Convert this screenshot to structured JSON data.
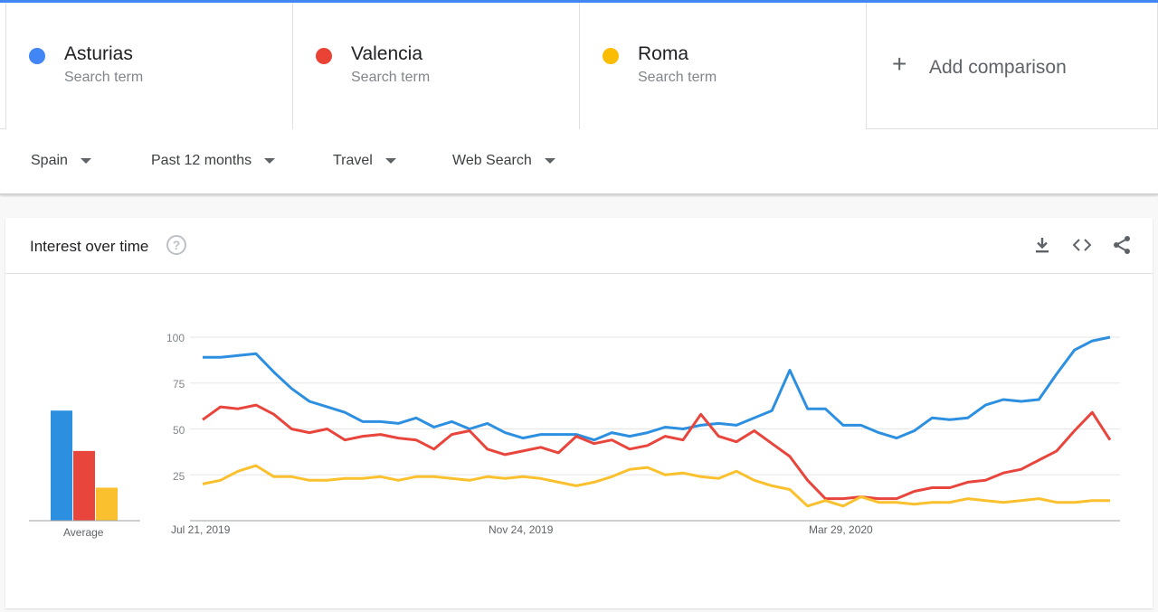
{
  "terms": [
    {
      "name": "Asturias",
      "sub": "Search term",
      "color": "#4285f4"
    },
    {
      "name": "Valencia",
      "sub": "Search term",
      "color": "#ea4335"
    },
    {
      "name": "Roma",
      "sub": "Search term",
      "color": "#fbbc04"
    }
  ],
  "add_comparison": {
    "icon": "plus-icon",
    "label": "Add comparison"
  },
  "filters": [
    {
      "label": "Spain"
    },
    {
      "label": "Past 12 months"
    },
    {
      "label": "Travel"
    },
    {
      "label": "Web Search"
    }
  ],
  "card": {
    "title": "Interest over time",
    "help_icon": "help-icon",
    "help_glyph": "?",
    "actions": [
      "download-icon",
      "embed-icon",
      "share-icon"
    ]
  },
  "chart_data": {
    "type": "line",
    "ylim": [
      0,
      100
    ],
    "yticks": [
      "100",
      "75",
      "50",
      "25"
    ],
    "x_labels": [
      "Jul 21, 2019",
      "Nov 24, 2019",
      "Mar 29, 2020"
    ],
    "series": [
      {
        "name": "Asturias",
        "color": "#2d8fe0",
        "values": [
          89,
          89,
          90,
          91,
          81,
          72,
          65,
          62,
          59,
          54,
          54,
          53,
          56,
          51,
          54,
          50,
          53,
          48,
          45,
          47,
          47,
          47,
          44,
          48,
          46,
          48,
          51,
          50,
          52,
          53,
          52,
          56,
          60,
          82,
          61,
          61,
          52,
          52,
          48,
          45,
          49,
          56,
          55,
          56,
          63,
          66,
          65,
          66,
          80,
          93,
          98,
          100
        ]
      },
      {
        "name": "Valencia",
        "color": "#e8453c",
        "values": [
          55,
          62,
          61,
          63,
          58,
          50,
          48,
          50,
          44,
          46,
          47,
          45,
          44,
          39,
          47,
          49,
          39,
          36,
          38,
          40,
          37,
          46,
          42,
          44,
          39,
          41,
          46,
          44,
          58,
          46,
          43,
          49,
          42,
          35,
          22,
          12,
          12,
          13,
          12,
          12,
          16,
          18,
          18,
          21,
          22,
          26,
          28,
          33,
          38,
          49,
          59,
          44
        ]
      },
      {
        "name": "Roma",
        "color": "#fbc02d",
        "values": [
          20,
          22,
          27,
          30,
          24,
          24,
          22,
          22,
          23,
          23,
          24,
          22,
          24,
          24,
          23,
          22,
          24,
          23,
          24,
          23,
          21,
          19,
          21,
          24,
          28,
          29,
          25,
          26,
          24,
          23,
          27,
          22,
          19,
          17,
          8,
          11,
          8,
          13,
          10,
          10,
          9,
          10,
          10,
          12,
          11,
          10,
          11,
          12,
          10,
          10,
          11,
          11
        ]
      }
    ],
    "average": {
      "label": "Average",
      "values": [
        60,
        38,
        18
      ]
    }
  }
}
